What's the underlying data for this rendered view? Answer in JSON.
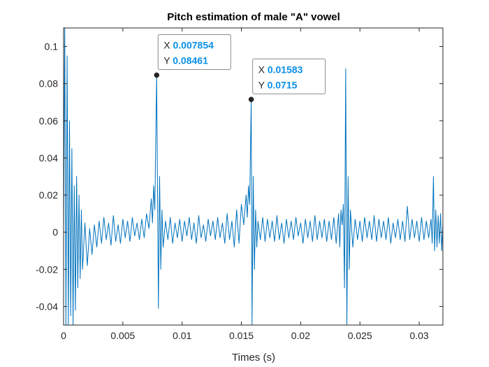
{
  "chart_data": {
    "type": "line",
    "title": "Pitch estimation of male \"A\" vowel",
    "xlabel": "Times (s)",
    "ylabel": "",
    "xlim": [
      0,
      0.032
    ],
    "ylim": [
      -0.05,
      0.11
    ],
    "xticks": [
      0,
      0.005,
      0.01,
      0.015,
      0.02,
      0.025,
      0.03
    ],
    "xtick_labels": [
      "0",
      "0.005",
      "0.01",
      "0.015",
      "0.02",
      "0.025",
      "0.03"
    ],
    "yticks": [
      -0.04,
      -0.02,
      0,
      0.02,
      0.04,
      0.06,
      0.08,
      0.1
    ],
    "ytick_labels": [
      "-0.04",
      "-0.02",
      "0",
      "0.02",
      "0.04",
      "0.06",
      "0.08",
      "0.1"
    ],
    "grid": false,
    "series": [
      {
        "color": "#0072bd",
        "x": [
          0,
          0.0001,
          0.0002,
          0.0003,
          0.0004,
          0.0005,
          0.0006,
          0.0007,
          0.0008,
          0.0009,
          0.001,
          0.0011,
          0.0012,
          0.0013,
          0.0014,
          0.0015,
          0.0016,
          0.0018,
          0.002,
          0.0022,
          0.0024,
          0.0026,
          0.0028,
          0.003,
          0.0032,
          0.0034,
          0.0036,
          0.0038,
          0.004,
          0.0042,
          0.0044,
          0.0046,
          0.0048,
          0.005,
          0.0052,
          0.0054,
          0.0056,
          0.0058,
          0.006,
          0.0062,
          0.0064,
          0.0066,
          0.0068,
          0.007,
          0.0072,
          0.0074,
          0.0075,
          0.0076,
          0.0077,
          0.00785,
          0.0079,
          0.008,
          0.0081,
          0.0082,
          0.0083,
          0.0084,
          0.0086,
          0.0088,
          0.009,
          0.0092,
          0.0094,
          0.0096,
          0.0098,
          0.01,
          0.0102,
          0.0104,
          0.0106,
          0.0108,
          0.011,
          0.0112,
          0.0114,
          0.0116,
          0.0118,
          0.012,
          0.0122,
          0.0124,
          0.0126,
          0.0128,
          0.013,
          0.0132,
          0.0134,
          0.0136,
          0.0138,
          0.014,
          0.0142,
          0.0144,
          0.0146,
          0.0148,
          0.015,
          0.0152,
          0.0154,
          0.0155,
          0.0156,
          0.0157,
          0.01583,
          0.0159,
          0.016,
          0.0161,
          0.0162,
          0.0163,
          0.0164,
          0.0166,
          0.0168,
          0.017,
          0.0172,
          0.0174,
          0.0176,
          0.0178,
          0.018,
          0.0182,
          0.0184,
          0.0186,
          0.0188,
          0.019,
          0.0192,
          0.0194,
          0.0196,
          0.0198,
          0.02,
          0.0202,
          0.0204,
          0.0206,
          0.0208,
          0.021,
          0.0212,
          0.0214,
          0.0216,
          0.0218,
          0.022,
          0.0222,
          0.0224,
          0.0226,
          0.0228,
          0.023,
          0.0232,
          0.0233,
          0.0234,
          0.0235,
          0.0236,
          0.0237,
          0.0238,
          0.0239,
          0.024,
          0.0241,
          0.0242,
          0.0244,
          0.0246,
          0.0248,
          0.025,
          0.0252,
          0.0254,
          0.0256,
          0.0258,
          0.026,
          0.0262,
          0.0264,
          0.0266,
          0.0268,
          0.027,
          0.0272,
          0.0274,
          0.0276,
          0.0278,
          0.028,
          0.0282,
          0.0284,
          0.0286,
          0.0288,
          0.029,
          0.0292,
          0.0294,
          0.0296,
          0.0298,
          0.03,
          0.0302,
          0.0304,
          0.0306,
          0.0308,
          0.031,
          0.0311,
          0.0312,
          0.0313,
          0.0314,
          0.0315,
          0.0316,
          0.0317,
          0.0318,
          0.0319,
          0.032
        ],
        "y": [
          0.0,
          0.11,
          -0.05,
          0.095,
          -0.05,
          0.06,
          -0.045,
          0.045,
          -0.05,
          0.025,
          -0.042,
          0.03,
          -0.03,
          0.02,
          -0.025,
          0.012,
          -0.02,
          0.005,
          -0.018,
          0.002,
          -0.012,
          0.004,
          -0.008,
          0.006,
          -0.006,
          0.008,
          -0.004,
          0.005,
          -0.007,
          0.009,
          -0.005,
          0.004,
          -0.006,
          0.007,
          -0.003,
          0.006,
          -0.005,
          0.008,
          -0.002,
          0.005,
          -0.004,
          0.007,
          -0.003,
          0.01,
          0.002,
          0.018,
          0.005,
          0.025,
          0.012,
          0.08461,
          0.045,
          -0.041,
          0.03,
          -0.02,
          0.012,
          -0.008,
          0.006,
          -0.004,
          0.008,
          -0.006,
          0.005,
          -0.003,
          0.007,
          -0.005,
          0.006,
          -0.002,
          0.008,
          -0.004,
          0.005,
          -0.006,
          0.009,
          -0.003,
          0.004,
          -0.005,
          0.007,
          -0.002,
          0.006,
          -0.004,
          0.008,
          -0.003,
          0.005,
          -0.006,
          0.01,
          -0.004,
          0.006,
          -0.008,
          0.012,
          -0.006,
          0.015,
          0.004,
          0.02,
          0.008,
          0.025,
          0.015,
          0.0715,
          -0.05,
          0.03,
          -0.02,
          0.012,
          -0.008,
          0.006,
          -0.004,
          0.008,
          -0.005,
          0.007,
          -0.003,
          0.006,
          -0.005,
          0.009,
          -0.004,
          0.005,
          -0.006,
          0.007,
          -0.003,
          0.006,
          -0.004,
          0.008,
          -0.002,
          0.005,
          -0.006,
          0.007,
          -0.003,
          0.006,
          -0.005,
          0.009,
          -0.004,
          0.006,
          -0.003,
          0.007,
          -0.005,
          0.006,
          -0.004,
          0.008,
          -0.006,
          0.01,
          -0.008,
          0.012,
          0.004,
          0.015,
          -0.03,
          0.088,
          -0.05,
          0.03,
          -0.02,
          0.012,
          -0.008,
          0.007,
          -0.004,
          0.006,
          -0.005,
          0.008,
          -0.003,
          0.006,
          -0.004,
          0.009,
          -0.005,
          0.007,
          -0.003,
          0.006,
          -0.004,
          0.008,
          -0.006,
          0.005,
          -0.003,
          0.007,
          -0.004,
          0.006,
          -0.005,
          0.014,
          -0.004,
          0.007,
          -0.003,
          0.006,
          -0.005,
          0.008,
          -0.004,
          0.006,
          -0.003,
          0.007,
          -0.006,
          0.03,
          -0.01,
          0.012,
          -0.008,
          0.009,
          -0.006,
          0.01,
          -0.01,
          0.005
        ]
      }
    ],
    "datatips": [
      {
        "x_key": "X",
        "x_value": "0.007854",
        "y_key": "Y",
        "y_value": "0.08461",
        "x": 0.007854,
        "y": 0.08461
      },
      {
        "x_key": "X",
        "x_value": "0.01583",
        "y_key": "Y",
        "y_value": "0.0715",
        "x": 0.01583,
        "y": 0.0715
      }
    ]
  }
}
